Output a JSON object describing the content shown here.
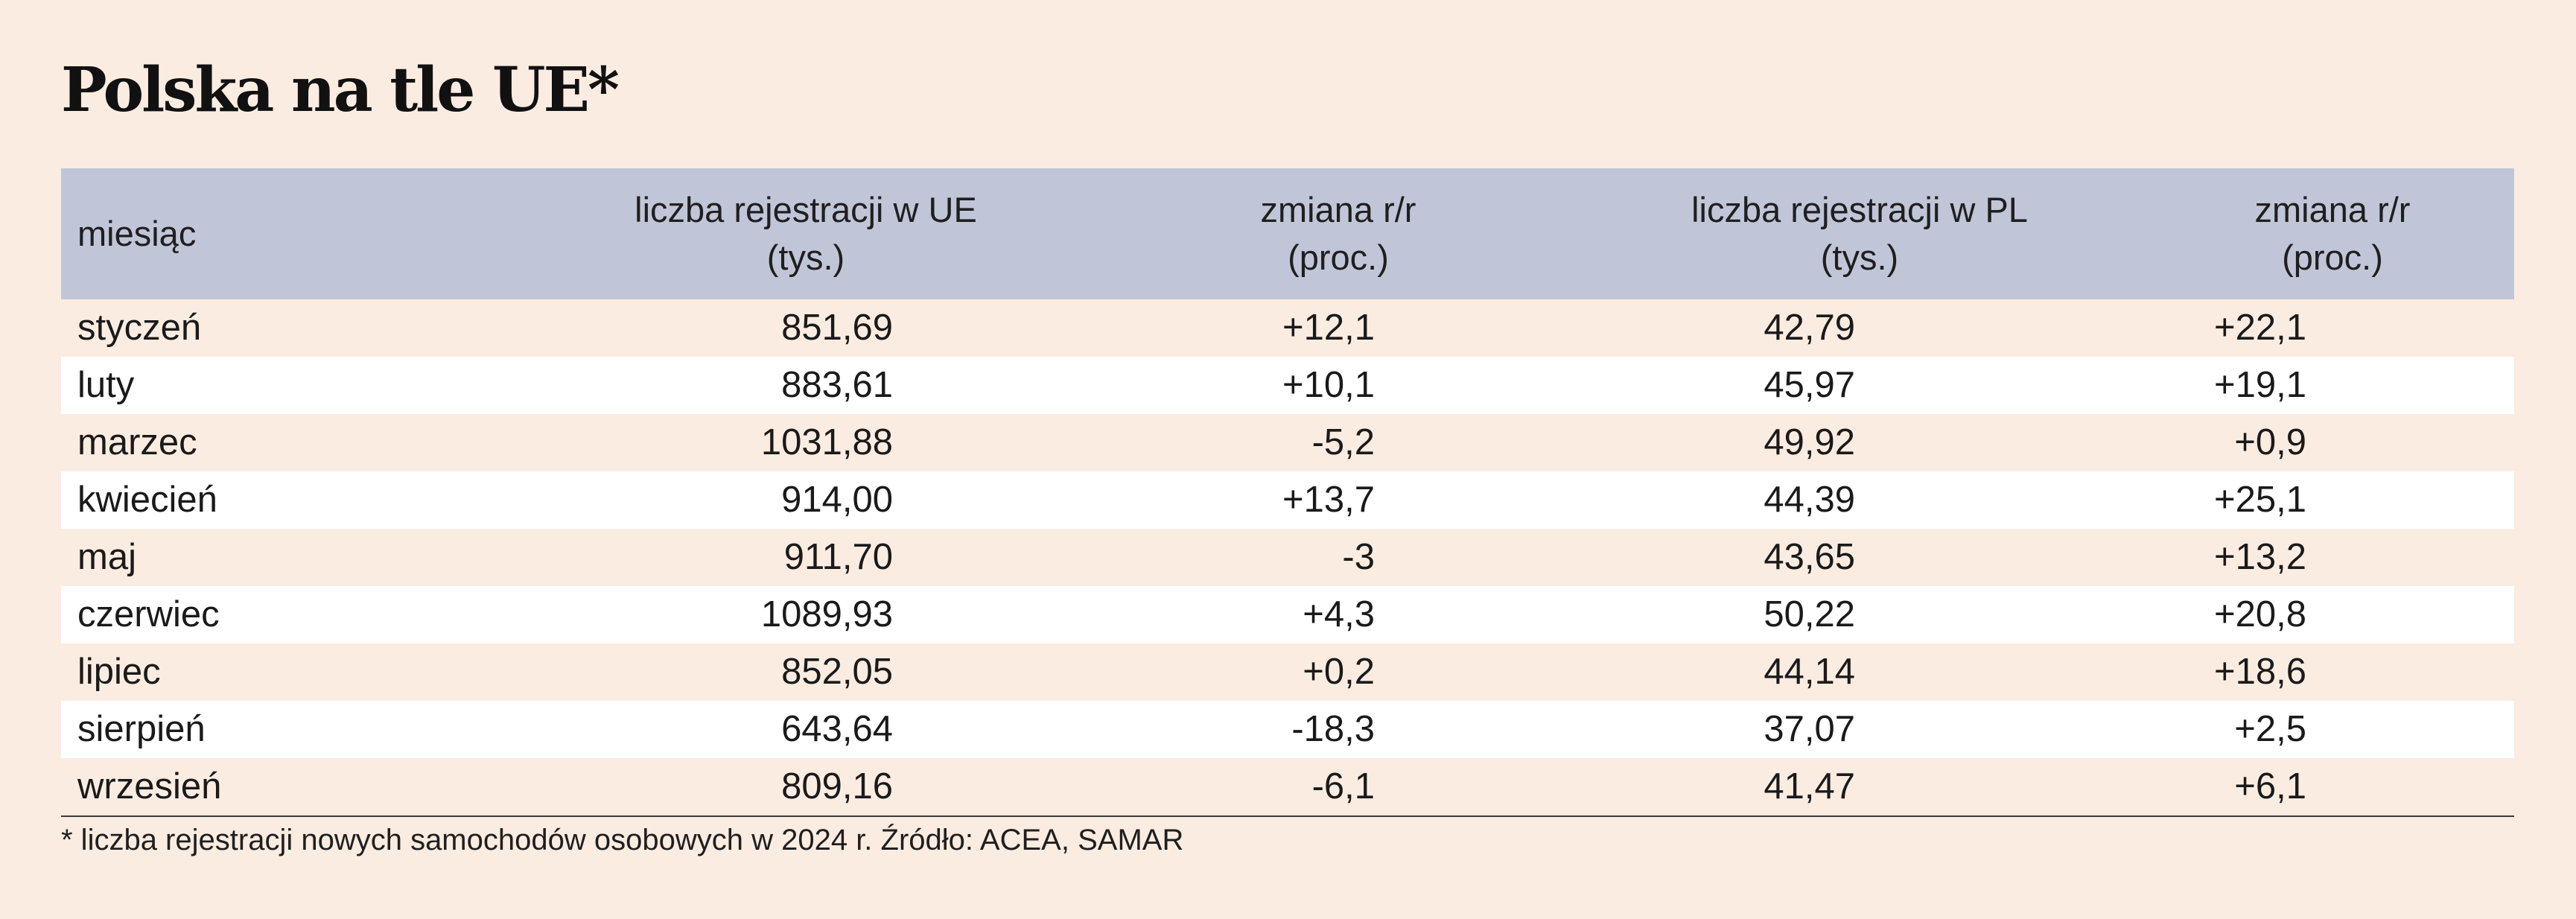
{
  "title": "Polska na tle UE*",
  "chart_data": {
    "type": "table",
    "title": "Polska na tle UE*",
    "columns": [
      [
        "miesiąc"
      ],
      [
        "liczba rejestracji w UE",
        "(tys.)"
      ],
      [
        "zmiana r/r",
        "(proc.)"
      ],
      [
        "liczba rejestracji w PL",
        "(tys.)"
      ],
      [
        "zmiana r/r",
        "(proc.)"
      ]
    ],
    "rows": [
      [
        "styczeń",
        "851,69",
        "+12,1",
        "42,79",
        "+22,1"
      ],
      [
        "luty",
        "883,61",
        "+10,1",
        "45,97",
        "+19,1"
      ],
      [
        "marzec",
        "1031,88",
        "-5,2",
        "49,92",
        "+0,9"
      ],
      [
        "kwiecień",
        "914,00",
        "+13,7",
        "44,39",
        "+25,1"
      ],
      [
        "maj",
        "911,70",
        "-3",
        "43,65",
        "+13,2"
      ],
      [
        "czerwiec",
        "1089,93",
        "+4,3",
        "50,22",
        "+20,8"
      ],
      [
        "lipiec",
        "852,05",
        "+0,2",
        "44,14",
        "+18,6"
      ],
      [
        "sierpień",
        "643,64",
        "-18,3",
        "37,07",
        "+2,5"
      ],
      [
        "wrzesień",
        "809,16",
        "-6,1",
        "41,47",
        "+6,1"
      ]
    ],
    "footnote": "* liczba rejestracji nowych samochodów osobowych w 2024 r. Źródło: ACEA, SAMAR"
  },
  "colors": {
    "background": "#fbece1",
    "header_background": "#c0c6d8",
    "alternate_row": "#ffffff"
  }
}
